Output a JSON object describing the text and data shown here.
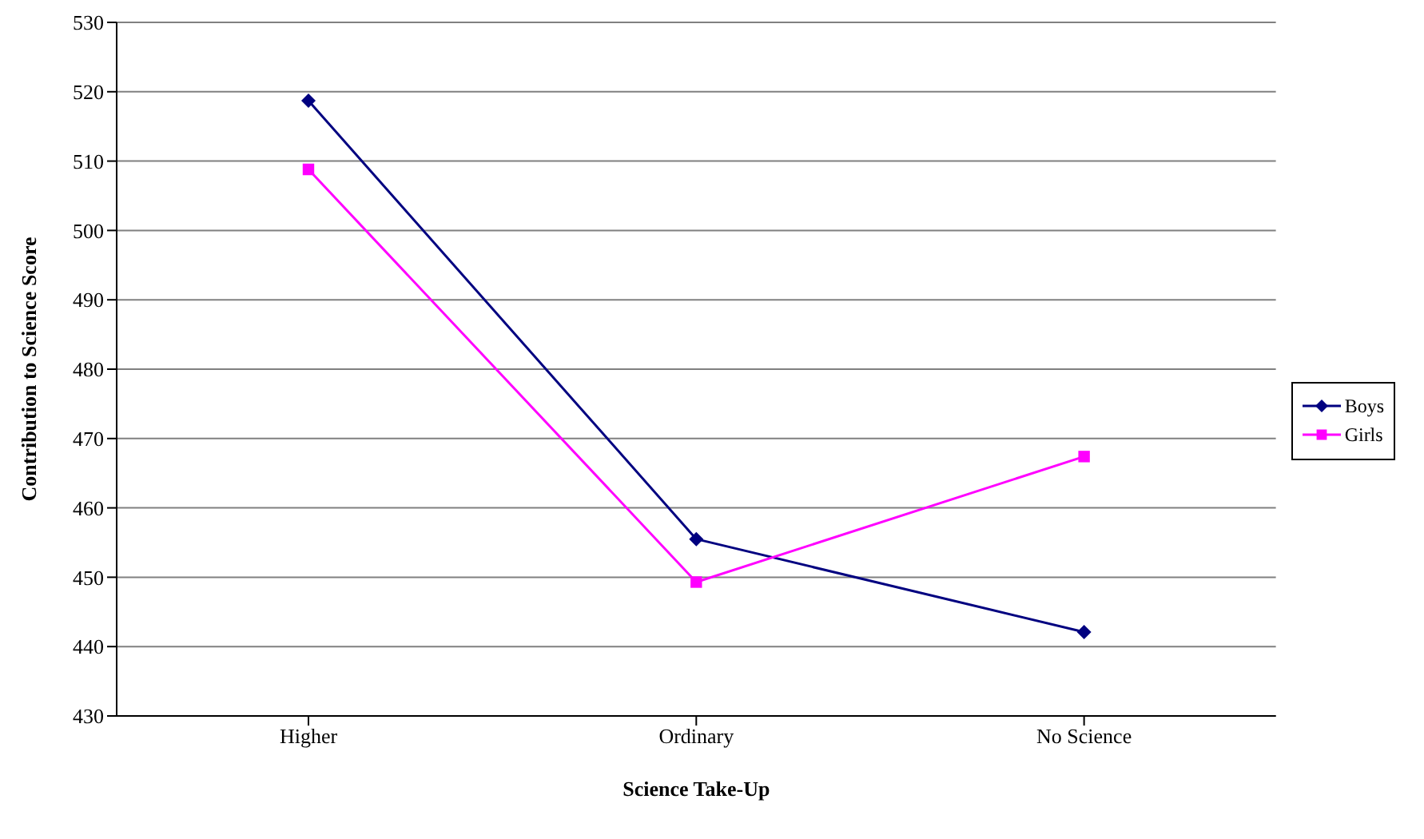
{
  "chart_data": {
    "type": "line",
    "xlabel": "Science Take-Up",
    "ylabel": "Contribution to Science Score",
    "categories": [
      "Higher",
      "Ordinary",
      "No Science"
    ],
    "series": [
      {
        "name": "Boys",
        "color": "#000080",
        "values": [
          518.7,
          455.5,
          442.1
        ],
        "marker": "diamond"
      },
      {
        "name": "Girls",
        "color": "#ff00ff",
        "values": [
          508.8,
          449.3,
          467.4
        ],
        "marker": "square"
      }
    ],
    "ylim": [
      430,
      530
    ],
    "yticks": [
      430,
      440,
      450,
      460,
      470,
      480,
      490,
      500,
      510,
      520,
      530
    ],
    "grid": "y",
    "legend": "right",
    "line_style": "solid"
  }
}
